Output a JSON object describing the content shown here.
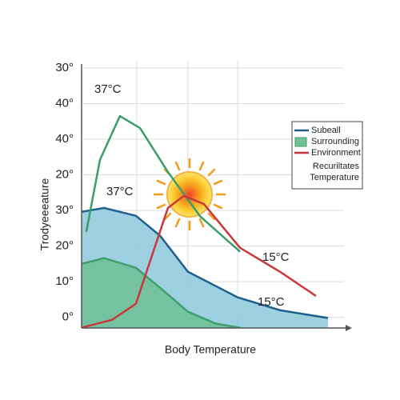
{
  "chart_data": {
    "type": "line",
    "xlabel": "Body Temperature",
    "ylabel": "Trodyeeeature",
    "xlim": [
      0,
      10
    ],
    "ylim": [
      -0.3,
      7.2
    ],
    "yticks": [
      {
        "value": 0,
        "label": "0°"
      },
      {
        "value": 1,
        "label": "10°"
      },
      {
        "value": 2,
        "label": "20°"
      },
      {
        "value": 3,
        "label": "30°"
      },
      {
        "value": 4,
        "label": "20°"
      },
      {
        "value": 5,
        "label": "40°"
      },
      {
        "value": 6,
        "label": "40°"
      },
      {
        "value": 7,
        "label": "30°"
      }
    ],
    "x_gridlines": [
      2.1,
      4.05,
      5.95
    ],
    "grid": true,
    "legend": "right",
    "legend_note": [
      "Recuriltates",
      "Temperature"
    ],
    "annotations": [
      "37°C",
      "37°C",
      "15°C",
      "15°C"
    ],
    "series": [
      {
        "name": "Subeall",
        "style": "area",
        "color": "#1f5f8b",
        "fill": "#8cc8dc",
        "x": [
          0,
          0.85,
          2.07,
          2.99,
          4.05,
          5.95,
          7.56,
          9.39
        ],
        "values": [
          2.96,
          3.07,
          2.85,
          2.29,
          1.28,
          0.56,
          0.2,
          -0.02
        ]
      },
      {
        "name": "Surrounding",
        "style": "area",
        "color": "#3f9e70",
        "fill": "#6fbf95",
        "x": [
          0,
          0.85,
          2.07,
          2.99,
          4.05,
          5.12,
          6.04
        ],
        "values": [
          1.5,
          1.66,
          1.39,
          0.83,
          0.16,
          -0.18,
          -0.29
        ]
      },
      {
        "style": "line",
        "color": "#3a9e6a",
        "x": [
          0.18,
          0.7,
          1.46,
          2.23,
          3.29,
          4.51,
          6.04
        ],
        "values": [
          2.4,
          4.42,
          5.65,
          5.31,
          4.08,
          2.84,
          1.84
        ]
      },
      {
        "name": "Environment",
        "style": "line",
        "color": "#c8383a",
        "x": [
          0,
          1.16,
          2.07,
          2.68,
          3.29,
          3.9,
          4.66,
          6.04,
          7.56,
          8.93
        ],
        "values": [
          -0.29,
          -0.07,
          0.38,
          1.73,
          3.07,
          3.41,
          3.18,
          1.95,
          1.28,
          0.6
        ]
      }
    ]
  }
}
